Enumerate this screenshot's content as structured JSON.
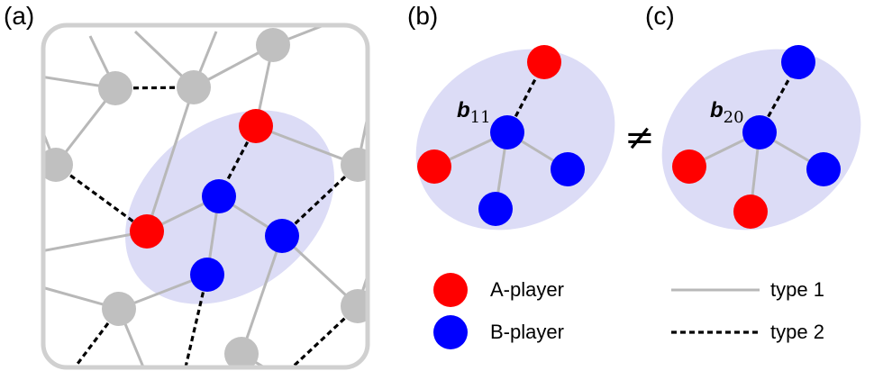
{
  "panels": {
    "a": "(a)",
    "b": "(b)",
    "c": "(c)"
  },
  "colors": {
    "a_player": "#ff0000",
    "b_player": "#0000ff",
    "neutral_node": "#c0c0c0",
    "type1_edge": "#b8b8b8",
    "type2_edge": "#000000",
    "highlight": "#dcdcf6",
    "frame": "#d0d0d0"
  },
  "motif_b": {
    "label_base": "b",
    "label_sub": "11"
  },
  "motif_c": {
    "label_base": "b",
    "label_sub": "20"
  },
  "relation_symbol": "≠",
  "legend": {
    "a_player": "A-player",
    "b_player": "B-player",
    "type1": "type 1",
    "type2": "type 2"
  }
}
